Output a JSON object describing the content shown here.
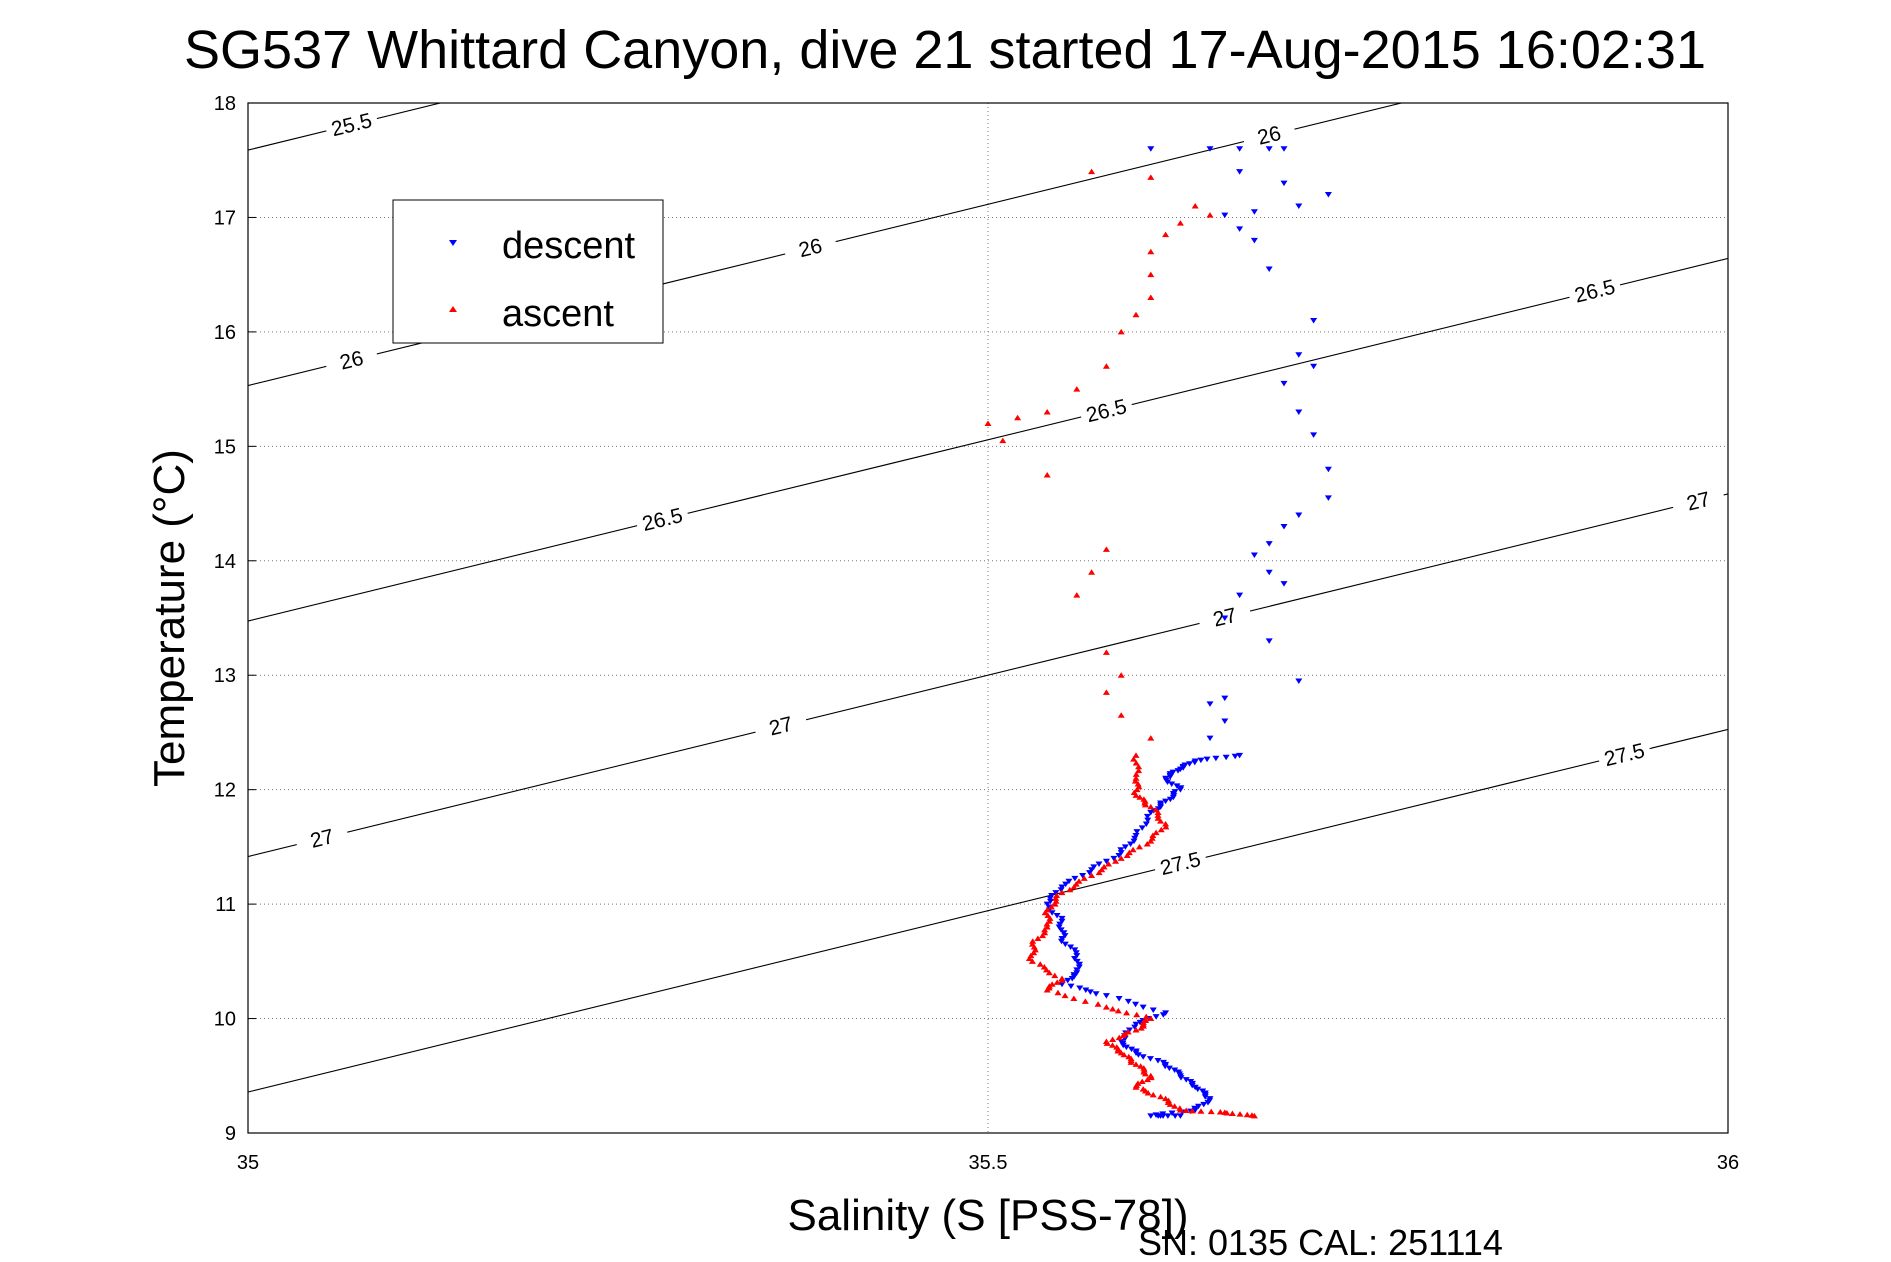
{
  "chart_data": {
    "type": "scatter",
    "title": "SG537 Whittard Canyon, dive 21 started 17-Aug-2015 16:02:31",
    "xlabel": "Salinity (S [PSS-78])",
    "ylabel": "Temperature (°C)",
    "xlim": [
      35,
      36
    ],
    "ylim": [
      9,
      18
    ],
    "xticks": [
      "35",
      "35.5",
      "36"
    ],
    "yticks": [
      "9",
      "10",
      "11",
      "12",
      "13",
      "14",
      "15",
      "16",
      "17",
      "18"
    ],
    "grid": "dotted",
    "legend_position": "top-left",
    "footer": "SN: 0135  CAL: 251114",
    "colors": {
      "descent": "#0000ff",
      "ascent": "#ff0000",
      "contour": "#000000"
    },
    "contours": [
      {
        "sigma": 25.5,
        "labels": [
          "25.5"
        ]
      },
      {
        "sigma": 26.0,
        "labels": [
          "26",
          "26",
          "26"
        ]
      },
      {
        "sigma": 26.5,
        "labels": [
          "26.5",
          "26.5",
          "26.5"
        ]
      },
      {
        "sigma": 27.0,
        "labels": [
          "27",
          "27",
          "27",
          "27"
        ]
      },
      {
        "sigma": 27.5,
        "labels": [
          "27.5",
          "27.5"
        ]
      }
    ],
    "series": [
      {
        "name": "descent",
        "marker": "triangle-down",
        "points": [
          [
            35.61,
            17.6
          ],
          [
            35.65,
            17.6
          ],
          [
            35.67,
            17.6
          ],
          [
            35.69,
            17.6
          ],
          [
            35.7,
            17.6
          ],
          [
            35.67,
            17.4
          ],
          [
            35.7,
            17.3
          ],
          [
            35.73,
            17.2
          ],
          [
            35.71,
            17.1
          ],
          [
            35.68,
            17.05
          ],
          [
            35.66,
            17.02
          ],
          [
            35.67,
            16.9
          ],
          [
            35.68,
            16.8
          ],
          [
            35.69,
            16.55
          ],
          [
            35.72,
            16.1
          ],
          [
            35.71,
            15.8
          ],
          [
            35.72,
            15.7
          ],
          [
            35.7,
            15.55
          ],
          [
            35.71,
            15.3
          ],
          [
            35.72,
            15.1
          ],
          [
            35.73,
            14.8
          ],
          [
            35.73,
            14.55
          ],
          [
            35.71,
            14.4
          ],
          [
            35.7,
            14.3
          ],
          [
            35.69,
            14.15
          ],
          [
            35.68,
            14.05
          ],
          [
            35.69,
            13.9
          ],
          [
            35.7,
            13.8
          ],
          [
            35.67,
            13.7
          ],
          [
            35.66,
            13.5
          ],
          [
            35.69,
            13.3
          ],
          [
            35.71,
            12.95
          ],
          [
            35.66,
            12.8
          ],
          [
            35.65,
            12.75
          ],
          [
            35.66,
            12.6
          ],
          [
            35.65,
            12.45
          ],
          [
            35.67,
            12.3
          ],
          [
            35.64,
            12.25
          ],
          [
            35.63,
            12.18
          ],
          [
            35.62,
            12.1
          ],
          [
            35.63,
            12.0
          ],
          [
            35.62,
            11.9
          ],
          [
            35.61,
            11.8
          ],
          [
            35.6,
            11.6
          ],
          [
            35.59,
            11.45
          ],
          [
            35.57,
            11.3
          ],
          [
            35.55,
            11.15
          ],
          [
            35.54,
            11.0
          ],
          [
            35.55,
            10.85
          ],
          [
            35.55,
            10.7
          ],
          [
            35.56,
            10.55
          ],
          [
            35.56,
            10.4
          ],
          [
            35.55,
            10.3
          ],
          [
            35.58,
            10.2
          ],
          [
            35.62,
            10.05
          ],
          [
            35.6,
            9.95
          ],
          [
            35.59,
            9.8
          ],
          [
            35.6,
            9.7
          ],
          [
            35.62,
            9.6
          ],
          [
            35.63,
            9.5
          ],
          [
            35.64,
            9.4
          ],
          [
            35.65,
            9.3
          ],
          [
            35.64,
            9.2
          ],
          [
            35.61,
            9.15
          ],
          [
            35.63,
            9.15
          ]
        ]
      },
      {
        "name": "ascent",
        "marker": "triangle-up",
        "points": [
          [
            35.68,
            9.15
          ],
          [
            35.66,
            9.18
          ],
          [
            35.63,
            9.2
          ],
          [
            35.62,
            9.3
          ],
          [
            35.6,
            9.4
          ],
          [
            35.61,
            9.5
          ],
          [
            35.6,
            9.6
          ],
          [
            35.59,
            9.7
          ],
          [
            35.58,
            9.8
          ],
          [
            35.6,
            9.9
          ],
          [
            35.61,
            10.0
          ],
          [
            35.58,
            10.1
          ],
          [
            35.54,
            10.25
          ],
          [
            35.55,
            10.35
          ],
          [
            35.53,
            10.5
          ],
          [
            35.53,
            10.65
          ],
          [
            35.54,
            10.8
          ],
          [
            35.54,
            10.95
          ],
          [
            35.55,
            11.1
          ],
          [
            35.57,
            11.25
          ],
          [
            35.59,
            11.4
          ],
          [
            35.61,
            11.55
          ],
          [
            35.62,
            11.7
          ],
          [
            35.61,
            11.85
          ],
          [
            35.6,
            11.95
          ],
          [
            35.6,
            12.1
          ],
          [
            35.6,
            12.3
          ],
          [
            35.61,
            12.45
          ],
          [
            35.59,
            12.65
          ],
          [
            35.58,
            12.85
          ],
          [
            35.59,
            13.0
          ],
          [
            35.58,
            13.2
          ],
          [
            35.56,
            13.7
          ],
          [
            35.57,
            13.9
          ],
          [
            35.58,
            14.1
          ],
          [
            35.54,
            14.75
          ],
          [
            35.51,
            15.05
          ],
          [
            35.5,
            15.2
          ],
          [
            35.52,
            15.25
          ],
          [
            35.54,
            15.3
          ],
          [
            35.56,
            15.5
          ],
          [
            35.58,
            15.7
          ],
          [
            35.59,
            16.0
          ],
          [
            35.6,
            16.15
          ],
          [
            35.61,
            16.3
          ],
          [
            35.61,
            16.5
          ],
          [
            35.61,
            16.7
          ],
          [
            35.62,
            16.85
          ],
          [
            35.63,
            16.95
          ],
          [
            35.65,
            17.02
          ],
          [
            35.64,
            17.1
          ],
          [
            35.61,
            17.35
          ],
          [
            35.57,
            17.4
          ]
        ]
      }
    ]
  }
}
